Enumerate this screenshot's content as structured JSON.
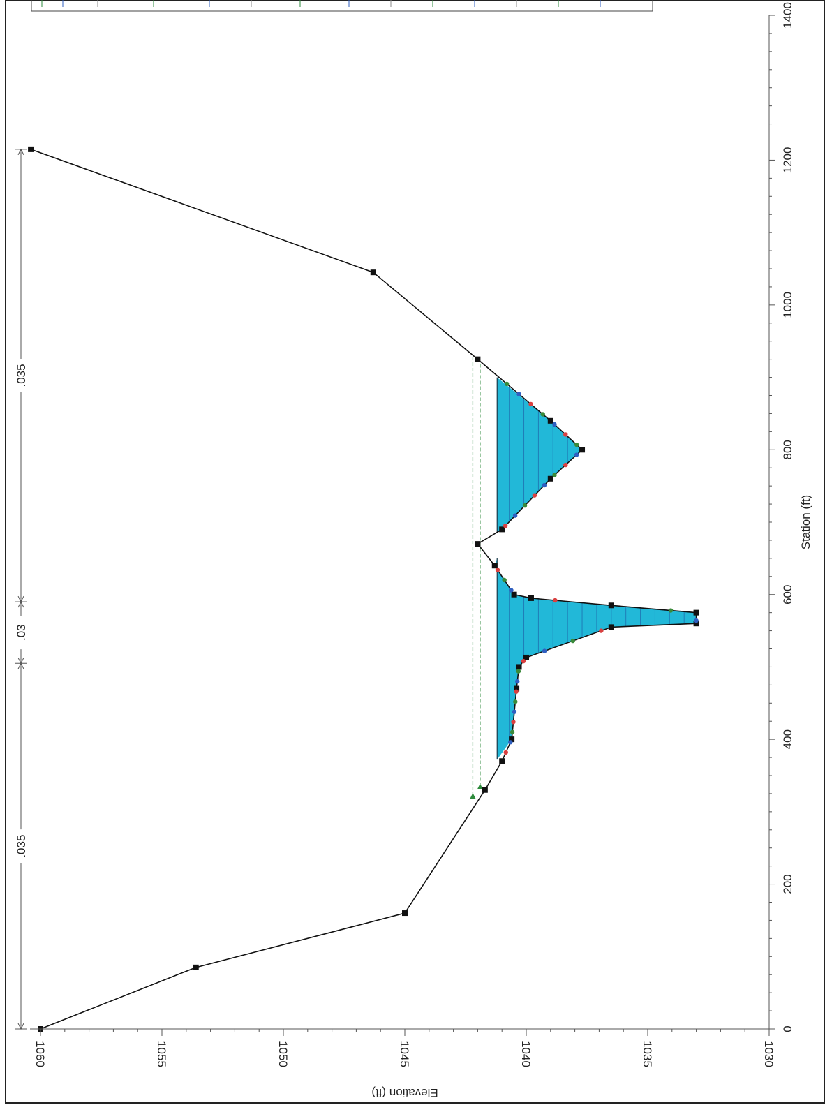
{
  "chart_data": {
    "type": "line",
    "orientation": "rotated-90-clockwise",
    "xlabel": "Station (ft)",
    "ylabel": "Elevation (ft)",
    "xlim": [
      0,
      1400
    ],
    "ylim": [
      1030,
      1060
    ],
    "x_ticks": [
      "0",
      "200",
      "400",
      "600",
      "800",
      "1000",
      "1200",
      "1400"
    ],
    "y_ticks": [
      "1030",
      "1035",
      "1040",
      "1045",
      "1050",
      "1055",
      "1060"
    ],
    "ground": {
      "name": "Ground",
      "color": "#000000",
      "points": [
        [
          0,
          1060
        ],
        [
          85,
          1053.6
        ],
        [
          160,
          1045
        ],
        [
          330,
          1041.7
        ],
        [
          370,
          1041
        ],
        [
          400,
          1040.6
        ],
        [
          470,
          1040.4
        ],
        [
          500,
          1040.3
        ],
        [
          513,
          1040
        ],
        [
          555,
          1036.5
        ],
        [
          560,
          1033
        ],
        [
          575,
          1033
        ],
        [
          585,
          1036.5
        ],
        [
          595,
          1039.8
        ],
        [
          600,
          1040.5
        ],
        [
          640,
          1041.3
        ],
        [
          670,
          1042
        ],
        [
          690,
          1041
        ],
        [
          760,
          1039
        ],
        [
          800,
          1037.7
        ],
        [
          840,
          1039
        ],
        [
          925,
          1042
        ],
        [
          1045,
          1046.3
        ],
        [
          1215,
          1060.4
        ]
      ]
    },
    "water_surface": {
      "elevation": 1041.2,
      "fill_color": "#22b8d8",
      "inundated_ranges": [
        [
          372,
          650
        ],
        [
          685,
          900
        ]
      ]
    },
    "ws_lines": {
      "color": "#2e8b3c",
      "lines": [
        {
          "elevation": 1042.2,
          "range": [
            322,
            930
          ]
        },
        {
          "elevation": 1041.9,
          "range": [
            335,
            920
          ]
        }
      ]
    },
    "manning_n": {
      "segments": [
        {
          "label": ".035",
          "range": [
            0,
            505
          ]
        },
        {
          "label": ".03",
          "range": [
            505,
            590
          ]
        },
        {
          "label": ".035",
          "range": [
            590,
            1215
          ]
        }
      ],
      "breakpoints": [
        0,
        505,
        590,
        1215
      ]
    }
  }
}
